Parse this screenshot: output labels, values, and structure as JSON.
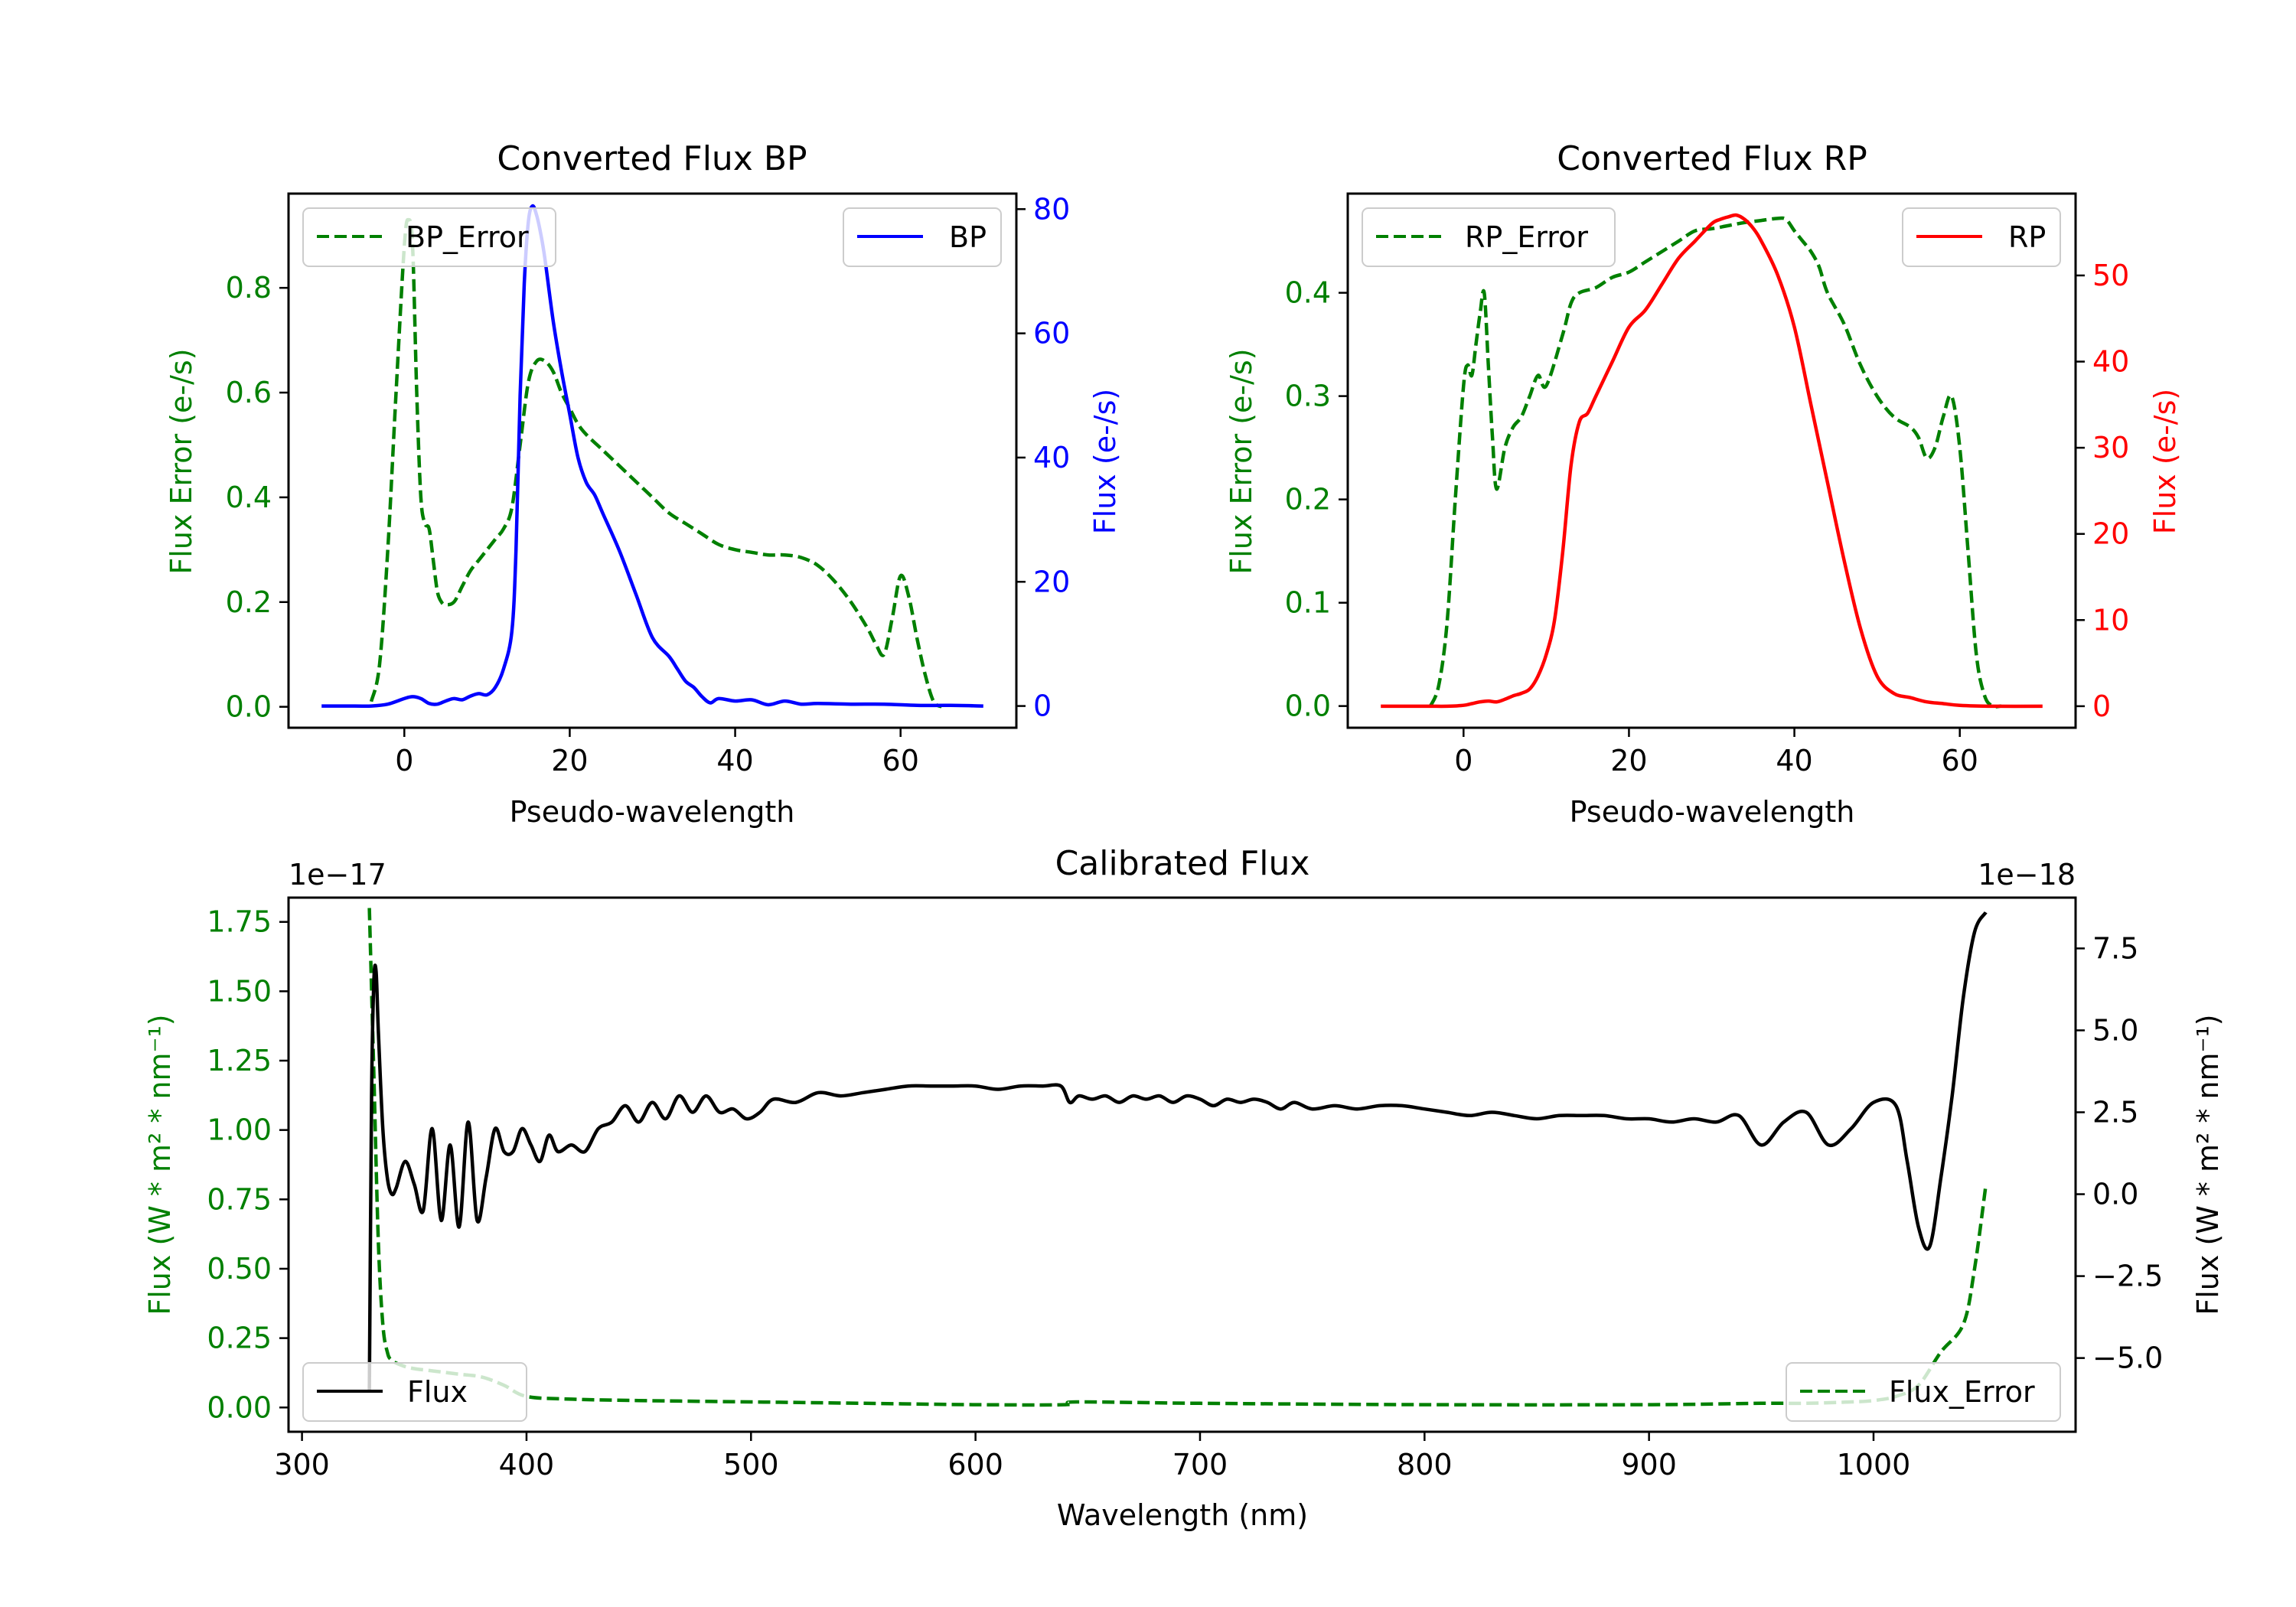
{
  "colors": {
    "error": "#008000",
    "bp": "#0000ff",
    "rp": "#ff0000",
    "flux": "#000000",
    "axis": "#000000"
  },
  "chart_data": [
    {
      "id": "bp",
      "type": "line",
      "title": "Converted Flux BP",
      "xlabel": "Pseudo-wavelength",
      "ylabel_left": "Flux Error (e-/s)",
      "ylabel_right": "Flux (e-/s)",
      "xlim": [
        -14,
        74
      ],
      "ylim_left": [
        -0.04,
        0.98
      ],
      "ylim_right": [
        -3.5,
        82.5
      ],
      "xticks": [
        0,
        20,
        40,
        60
      ],
      "yticks_left": [
        "0.0",
        "0.2",
        "0.4",
        "0.6",
        "0.8"
      ],
      "yticks_left_values": [
        0,
        0.2,
        0.4,
        0.6,
        0.8
      ],
      "yticks_right": [
        "0",
        "20",
        "40",
        "60",
        "80"
      ],
      "yticks_right_values": [
        0,
        20,
        40,
        60,
        80
      ],
      "legend_left": "BP_Error",
      "legend_right": "BP",
      "series": [
        {
          "name": "BP_Error",
          "axis": "left",
          "style": "dashed",
          "color": "#008000",
          "x": [
            -4,
            -3,
            -2,
            -1,
            0,
            0.5,
            1,
            1.5,
            2,
            2.5,
            3,
            3.5,
            4,
            4.5,
            5,
            6,
            7,
            8,
            9,
            10,
            11,
            12,
            13,
            14,
            15,
            16,
            17,
            18,
            19,
            20,
            21,
            22,
            24,
            26,
            28,
            30,
            32,
            34,
            36,
            38,
            40,
            42,
            44,
            46,
            48,
            50,
            52,
            54,
            56,
            57,
            58,
            59,
            60,
            61,
            62,
            63,
            64,
            65
          ],
          "y": [
            0.01,
            0.08,
            0.3,
            0.6,
            0.88,
            0.93,
            0.88,
            0.6,
            0.4,
            0.35,
            0.34,
            0.28,
            0.22,
            0.2,
            0.195,
            0.2,
            0.23,
            0.26,
            0.28,
            0.3,
            0.32,
            0.34,
            0.38,
            0.5,
            0.62,
            0.66,
            0.66,
            0.64,
            0.6,
            0.57,
            0.54,
            0.52,
            0.49,
            0.46,
            0.43,
            0.4,
            0.37,
            0.35,
            0.33,
            0.31,
            0.3,
            0.295,
            0.29,
            0.29,
            0.285,
            0.27,
            0.24,
            0.2,
            0.15,
            0.12,
            0.1,
            0.17,
            0.25,
            0.21,
            0.13,
            0.06,
            0.01,
            0.0
          ]
        },
        {
          "name": "BP",
          "axis": "right",
          "style": "solid",
          "color": "#0000ff",
          "x": [
            -10,
            -6,
            -4,
            -2,
            0,
            1,
            2,
            3,
            4,
            5,
            6,
            7,
            8,
            9,
            10,
            11,
            12,
            13,
            13.5,
            14,
            14.5,
            15,
            15.5,
            16,
            16.5,
            17,
            18,
            19,
            20,
            21,
            22,
            23,
            24,
            26,
            28,
            30,
            32,
            33,
            34,
            35,
            36,
            37,
            38,
            40,
            42,
            44,
            46,
            48,
            50,
            54,
            58,
            62,
            66,
            70
          ],
          "y": [
            0,
            0,
            0,
            0.3,
            1.2,
            1.5,
            1.2,
            0.4,
            0.3,
            0.8,
            1.2,
            1.0,
            1.6,
            2.0,
            1.8,
            3.0,
            6.0,
            12.0,
            25.0,
            50.0,
            68.0,
            78.0,
            80.5,
            79.0,
            76.0,
            72.0,
            62.0,
            54.0,
            47.0,
            40.0,
            36.0,
            34.0,
            31.0,
            25.0,
            18.0,
            11.0,
            8.0,
            6.0,
            4.0,
            3.0,
            1.5,
            0.5,
            1.2,
            0.8,
            1.0,
            0.2,
            0.8,
            0.3,
            0.4,
            0.3,
            0.3,
            0.1,
            0.1,
            0.0
          ]
        }
      ]
    },
    {
      "id": "rp",
      "type": "line",
      "title": "Converted Flux RP",
      "xlabel": "Pseudo-wavelength",
      "ylabel_left": "Flux Error (e-/s)",
      "ylabel_right": "Flux (e-/s)",
      "xlim": [
        -14,
        74
      ],
      "ylim_left": [
        -0.021,
        0.496
      ],
      "ylim_right": [
        -2.5,
        59.5
      ],
      "xticks": [
        0,
        20,
        40,
        60
      ],
      "yticks_left": [
        "0.0",
        "0.1",
        "0.2",
        "0.3",
        "0.4"
      ],
      "yticks_left_values": [
        0,
        0.1,
        0.2,
        0.3,
        0.4
      ],
      "yticks_right": [
        "0",
        "10",
        "20",
        "30",
        "40",
        "50"
      ],
      "yticks_right_values": [
        0,
        10,
        20,
        30,
        40,
        50
      ],
      "legend_left": "RP_Error",
      "legend_right": "RP",
      "series": [
        {
          "name": "RP_Error",
          "axis": "left",
          "style": "dashed",
          "color": "#008000",
          "x": [
            -4,
            -3,
            -2,
            -1,
            0,
            0.5,
            1,
            1.5,
            2,
            2.5,
            3,
            3.5,
            4,
            5,
            6,
            7,
            8,
            9,
            10,
            12,
            13,
            14,
            16,
            18,
            20,
            22,
            24,
            26,
            28,
            30,
            32,
            34,
            36,
            38,
            39,
            40,
            41,
            42,
            43,
            44,
            46,
            48,
            50,
            52,
            54,
            55,
            56,
            57,
            58,
            59,
            60,
            61,
            62,
            63,
            64,
            65
          ],
          "y": [
            0.0,
            0.02,
            0.08,
            0.2,
            0.31,
            0.33,
            0.32,
            0.35,
            0.38,
            0.4,
            0.33,
            0.26,
            0.21,
            0.25,
            0.27,
            0.28,
            0.3,
            0.32,
            0.31,
            0.36,
            0.39,
            0.4,
            0.405,
            0.415,
            0.42,
            0.43,
            0.44,
            0.45,
            0.46,
            0.462,
            0.465,
            0.468,
            0.47,
            0.472,
            0.471,
            0.46,
            0.45,
            0.44,
            0.425,
            0.4,
            0.37,
            0.33,
            0.3,
            0.28,
            0.27,
            0.26,
            0.24,
            0.25,
            0.28,
            0.3,
            0.25,
            0.15,
            0.05,
            0.01,
            0.0,
            0.0
          ]
        },
        {
          "name": "RP",
          "axis": "right",
          "style": "solid",
          "color": "#ff0000",
          "x": [
            -10,
            -6,
            -4,
            -2,
            0,
            1,
            2,
            3,
            4,
            5,
            6,
            7,
            8,
            9,
            10,
            11,
            12,
            13,
            14,
            15,
            16,
            18,
            20,
            22,
            24,
            26,
            28,
            30,
            31,
            32,
            33,
            34,
            35,
            36,
            38,
            40,
            42,
            44,
            46,
            48,
            50,
            52,
            54,
            56,
            58,
            60,
            64,
            70
          ],
          "y": [
            0,
            0,
            0,
            0,
            0.1,
            0.3,
            0.5,
            0.6,
            0.5,
            0.8,
            1.2,
            1.5,
            2.0,
            3.5,
            6.0,
            10.0,
            18.0,
            28.0,
            33.0,
            34.0,
            36.0,
            40.0,
            44.0,
            46.0,
            49.0,
            52.0,
            54.0,
            56.0,
            56.5,
            56.8,
            57.0,
            56.5,
            55.5,
            54.0,
            50.0,
            44.0,
            35.0,
            26.0,
            17.0,
            9.0,
            3.5,
            1.5,
            1.0,
            0.5,
            0.3,
            0.1,
            0.0,
            0.0
          ]
        }
      ]
    },
    {
      "id": "cal",
      "type": "line",
      "title": "Calibrated Flux",
      "xlabel": "Wavelength (nm)",
      "ylabel_left": "Flux (W * m² * nm⁻¹)",
      "ylabel_right": "Flux (W * m² * nm⁻¹)",
      "xlim": [
        294,
        1090
      ],
      "ylim_left": [
        -0.0875,
        1.8375
      ],
      "ylim_right": [
        -7.25,
        9.05
      ],
      "offset_left": "1e−17",
      "offset_right": "1e−18",
      "xticks": [
        300,
        400,
        500,
        600,
        700,
        800,
        900,
        1000
      ],
      "yticks_left": [
        "0.00",
        "0.25",
        "0.50",
        "0.75",
        "1.00",
        "1.25",
        "1.50",
        "1.75"
      ],
      "yticks_left_values": [
        0,
        0.25,
        0.5,
        0.75,
        1.0,
        1.25,
        1.5,
        1.75
      ],
      "yticks_right": [
        "−5.0",
        "−2.5",
        "0.0",
        "2.5",
        "5.0",
        "7.5"
      ],
      "yticks_right_values": [
        -5,
        -2.5,
        0,
        2.5,
        5,
        7.5
      ],
      "legend_left": "Flux",
      "legend_right": "Flux_Error",
      "series": [
        {
          "name": "Flux_Error",
          "axis": "left",
          "style": "dashed",
          "color": "#008000",
          "x": [
            330,
            332,
            334,
            336,
            338,
            340,
            345,
            350,
            360,
            370,
            380,
            390,
            400,
            420,
            450,
            500,
            550,
            600,
            640,
            645,
            700,
            800,
            900,
            950,
            970,
            990,
            1000,
            1010,
            1020,
            1030,
            1040,
            1045,
            1050
          ],
          "y": [
            1.8,
            1.2,
            0.6,
            0.3,
            0.2,
            0.17,
            0.15,
            0.14,
            0.13,
            0.12,
            0.11,
            0.08,
            0.04,
            0.03,
            0.025,
            0.02,
            0.015,
            0.01,
            0.01,
            0.02,
            0.015,
            0.01,
            0.01,
            0.015,
            0.015,
            0.02,
            0.025,
            0.04,
            0.08,
            0.2,
            0.3,
            0.5,
            0.8
          ]
        },
        {
          "name": "Flux",
          "axis": "right",
          "style": "solid",
          "color": "#000000",
          "x": [
            330,
            331,
            332,
            333,
            334,
            336,
            338,
            340,
            342,
            346,
            350,
            354,
            358,
            362,
            366,
            370,
            374,
            378,
            382,
            386,
            390,
            394,
            398,
            402,
            406,
            410,
            414,
            420,
            426,
            432,
            438,
            444,
            450,
            456,
            462,
            468,
            474,
            480,
            486,
            492,
            498,
            504,
            510,
            520,
            530,
            540,
            550,
            560,
            570,
            580,
            590,
            600,
            610,
            620,
            630,
            638,
            642,
            646,
            652,
            658,
            664,
            670,
            676,
            682,
            688,
            694,
            700,
            706,
            712,
            718,
            724,
            730,
            736,
            742,
            750,
            760,
            770,
            780,
            790,
            800,
            810,
            820,
            830,
            840,
            850,
            860,
            870,
            880,
            890,
            900,
            910,
            920,
            930,
            940,
            950,
            960,
            970,
            980,
            990,
            1000,
            1010,
            1015,
            1020,
            1025,
            1030,
            1035,
            1040,
            1045,
            1050
          ],
          "y": [
            -6.0,
            3.0,
            6.5,
            6.8,
            5.0,
            2.0,
            0.5,
            0.0,
            0.2,
            1.0,
            0.3,
            -0.5,
            2.0,
            -0.8,
            1.5,
            -1.0,
            2.2,
            -0.8,
            0.5,
            2.0,
            1.3,
            1.3,
            2.0,
            1.5,
            1.0,
            1.8,
            1.3,
            1.5,
            1.3,
            2.0,
            2.2,
            2.7,
            2.2,
            2.8,
            2.3,
            3.0,
            2.5,
            3.0,
            2.5,
            2.6,
            2.3,
            2.5,
            2.9,
            2.8,
            3.1,
            3.0,
            3.1,
            3.2,
            3.3,
            3.3,
            3.3,
            3.3,
            3.2,
            3.3,
            3.3,
            3.3,
            2.8,
            3.0,
            2.9,
            3.0,
            2.8,
            3.0,
            2.9,
            3.0,
            2.8,
            3.0,
            2.9,
            2.7,
            2.9,
            2.8,
            2.9,
            2.8,
            2.6,
            2.8,
            2.6,
            2.7,
            2.6,
            2.7,
            2.7,
            2.6,
            2.5,
            2.4,
            2.5,
            2.4,
            2.3,
            2.4,
            2.4,
            2.4,
            2.3,
            2.3,
            2.2,
            2.3,
            2.2,
            2.4,
            1.5,
            2.2,
            2.5,
            1.5,
            2.0,
            2.8,
            2.7,
            1.0,
            -1.0,
            -1.6,
            0.5,
            3.0,
            6.0,
            8.0,
            8.6
          ]
        }
      ]
    }
  ]
}
